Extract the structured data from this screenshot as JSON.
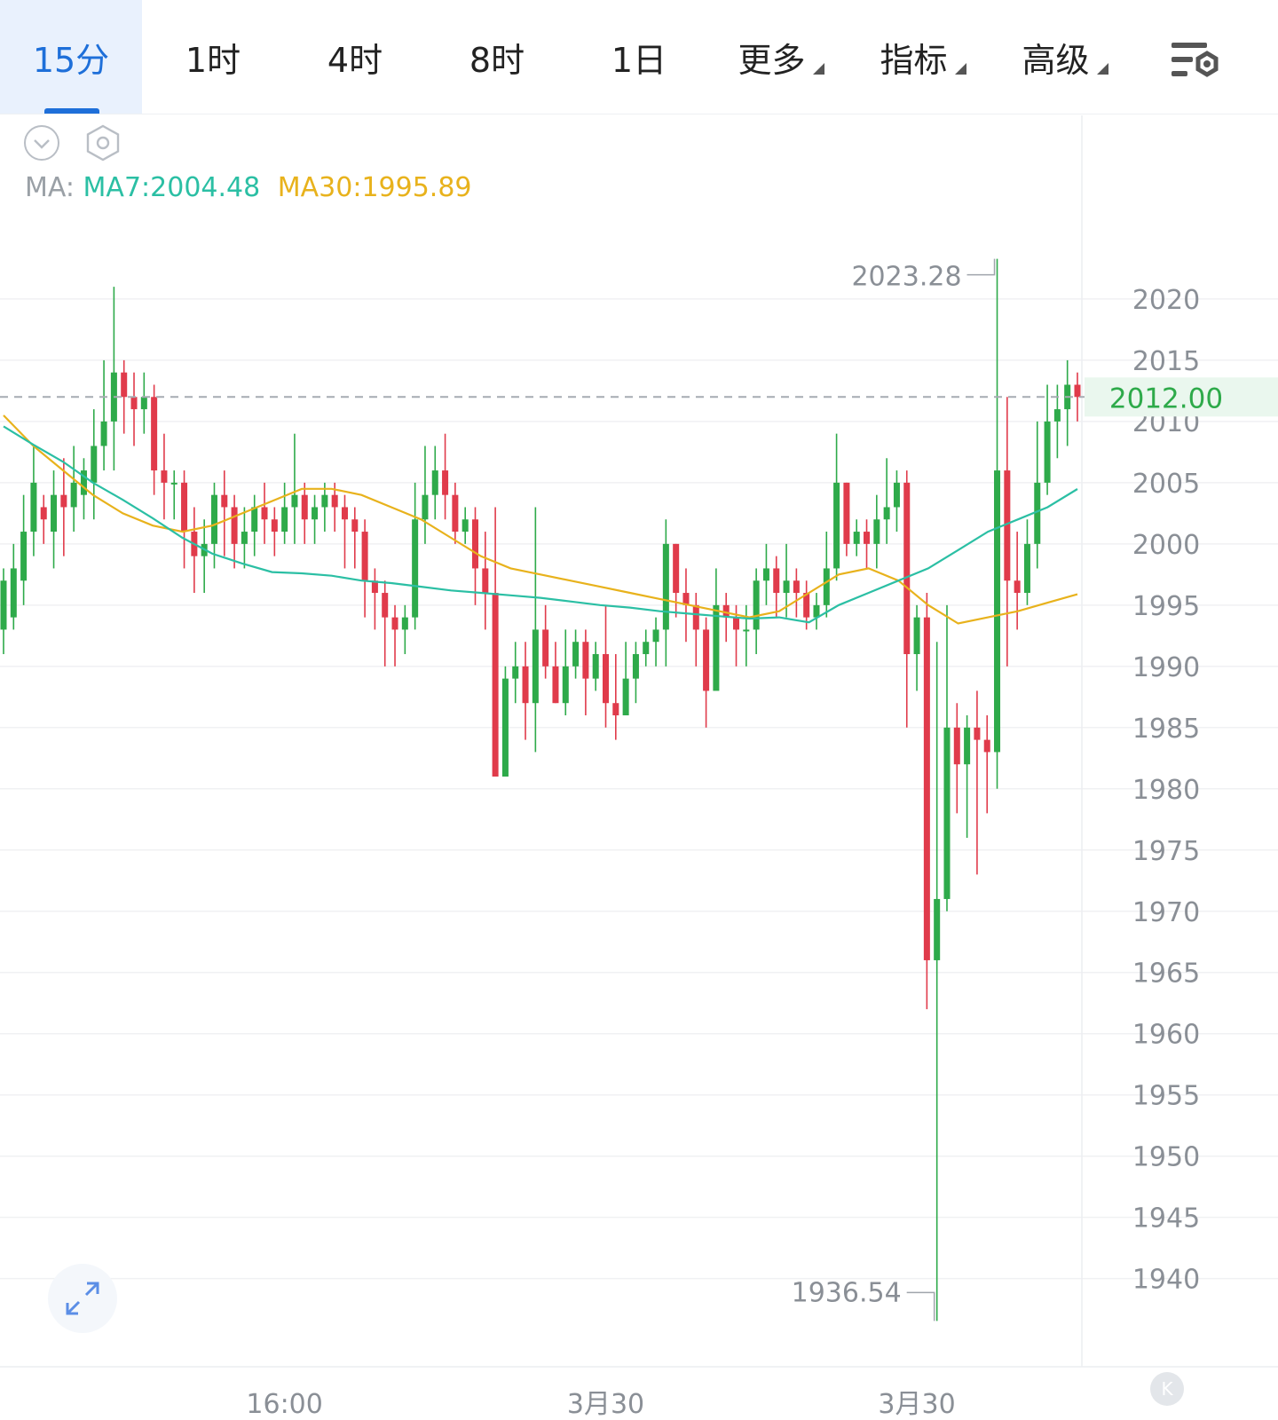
{
  "tabs": [
    {
      "label": "15分",
      "active": true
    },
    {
      "label": "1时"
    },
    {
      "label": "4时"
    },
    {
      "label": "8时"
    },
    {
      "label": "1日"
    },
    {
      "label": "更多",
      "dropdown": true
    },
    {
      "label": "指标",
      "dropdown": true
    },
    {
      "label": "高级",
      "dropdown": true
    }
  ],
  "toolbar": {
    "settings_icon": "chart-settings-icon",
    "collapse_icon": "chevron-down-circle-icon",
    "hex_icon": "hexagon-settings-icon"
  },
  "ma": {
    "prefix": "MA:",
    "ma7": "MA7:2004.48",
    "ma30": "MA30:1995.89"
  },
  "colors": {
    "up": "#2eaa4a",
    "down": "#e03b4b",
    "ma7": "#2bbfa4",
    "ma30": "#e8b21c",
    "accent": "#1e6fd9"
  },
  "chart_data": {
    "type": "candlestick",
    "y_axis_ticks": [
      2020,
      2015,
      2010,
      2005,
      2000,
      1995,
      1990,
      1985,
      1980,
      1975,
      1970,
      1965,
      1960,
      1955,
      1950,
      1945,
      1940
    ],
    "ylim": [
      1932.8,
      2026.3
    ],
    "x_tick_labels": [
      "16:00",
      "3月30",
      "3月30"
    ],
    "current_price": "2012.00",
    "high_label": "2023.28",
    "low_label": "1936.54",
    "series": [
      {
        "name": "MA7",
        "values": [
          2009.6,
          2008.1,
          2006.7,
          2005.0,
          2003.6,
          2002.1,
          2000.5,
          1999.2,
          1998.4,
          1997.7,
          1997.6,
          1997.4,
          1997.0,
          1996.8,
          1996.5,
          1996.2,
          1996.0,
          1995.8,
          1995.6,
          1995.3,
          1995.0,
          1994.8,
          1994.5,
          1994.3,
          1994.1,
          1993.9,
          1994.0,
          1993.6,
          1995.0,
          1996.0,
          1997.0,
          1998.0,
          1999.5,
          2001.0,
          2002.0,
          2003.0,
          2004.48
        ]
      },
      {
        "name": "MA30",
        "values": [
          2010.5,
          2008.0,
          2006.0,
          2004.0,
          2002.5,
          2001.5,
          2001.0,
          2001.5,
          2002.5,
          2003.5,
          2004.5,
          2004.5,
          2004.0,
          2003.0,
          2002.0,
          2000.5,
          1999.0,
          1998.0,
          1997.5,
          1997.0,
          1996.5,
          1996.0,
          1995.5,
          1995.0,
          1994.5,
          1994.0,
          1994.5,
          1996.0,
          1997.5,
          1998.0,
          1997.0,
          1995.0,
          1993.5,
          1994.0,
          1994.5,
          1995.2,
          1995.89
        ]
      },
      {
        "name": "candles",
        "values": [
          [
            1993,
            1997,
            1991,
            1998
          ],
          [
            1994,
            1998,
            1993,
            2000
          ],
          [
            1997,
            2001,
            1995,
            2004
          ],
          [
            2001,
            2005,
            1999,
            2008
          ],
          [
            2003,
            2002,
            2000,
            2004
          ],
          [
            2001,
            2004,
            1998,
            2006
          ],
          [
            2004,
            2003,
            1999,
            2007
          ],
          [
            2003,
            2005,
            2001,
            2008
          ],
          [
            2004,
            2006,
            2002,
            2007
          ],
          [
            2005,
            2008,
            2002,
            2011
          ],
          [
            2008,
            2010,
            2006,
            2015
          ],
          [
            2010,
            2014,
            2006,
            2021
          ],
          [
            2014,
            2012,
            2009,
            2015
          ],
          [
            2012,
            2011,
            2008,
            2014
          ],
          [
            2011,
            2012,
            2009,
            2014
          ],
          [
            2012,
            2006,
            2004,
            2013
          ],
          [
            2006,
            2005,
            2002,
            2009
          ],
          [
            2005,
            2005,
            2002,
            2006
          ],
          [
            2005,
            2001,
            1998,
            2006
          ],
          [
            2001,
            1999,
            1996,
            2003
          ],
          [
            1999,
            2000,
            1996,
            2002
          ],
          [
            2000,
            2004,
            1998,
            2005
          ],
          [
            2004,
            2003,
            1999,
            2006
          ],
          [
            2003,
            2000,
            1998,
            2004
          ],
          [
            2000,
            2001,
            1998,
            2003
          ],
          [
            2001,
            2003,
            1999,
            2004
          ],
          [
            2003,
            2002,
            2000,
            2005
          ],
          [
            2002,
            2001,
            1999,
            2003
          ],
          [
            2001,
            2003,
            2000,
            2005
          ],
          [
            2003,
            2004,
            2000,
            2009
          ],
          [
            2004,
            2002,
            2000,
            2005
          ],
          [
            2002,
            2003,
            2000,
            2004
          ],
          [
            2003,
            2004,
            2001,
            2005
          ],
          [
            2004,
            2003,
            2001,
            2005
          ],
          [
            2003,
            2002,
            1998,
            2004
          ],
          [
            2002,
            2001,
            1998,
            2003
          ],
          [
            2001,
            1997,
            1994,
            2002
          ],
          [
            1997,
            1996,
            1993,
            1998
          ],
          [
            1996,
            1994,
            1990,
            1997
          ],
          [
            1994,
            1993,
            1990,
            1995
          ],
          [
            1993,
            1994,
            1991,
            1995
          ],
          [
            1994,
            2002,
            1993,
            2005
          ],
          [
            2002,
            2004,
            2000,
            2008
          ],
          [
            2004,
            2006,
            2002,
            2008
          ],
          [
            2006,
            2004,
            2002,
            2009
          ],
          [
            2004,
            2001,
            2000,
            2005
          ],
          [
            2001,
            2002,
            2000,
            2003
          ],
          [
            2002,
            1998,
            1995,
            2003
          ],
          [
            1998,
            1996,
            1993,
            2001
          ],
          [
            1996,
            1981,
            1981,
            2003
          ],
          [
            1981,
            1989,
            1981,
            1990
          ],
          [
            1989,
            1990,
            1987,
            1992
          ],
          [
            1990,
            1987,
            1984,
            1992
          ],
          [
            1987,
            1993,
            1983,
            2003
          ],
          [
            1993,
            1990,
            1989,
            1995
          ],
          [
            1990,
            1987,
            1987,
            1992
          ],
          [
            1987,
            1990,
            1986,
            1993
          ],
          [
            1990,
            1992,
            1989,
            1993
          ],
          [
            1992,
            1989,
            1986,
            1993
          ],
          [
            1989,
            1991,
            1988,
            1992
          ],
          [
            1991,
            1987,
            1985,
            1995
          ],
          [
            1987,
            1986,
            1984,
            1991
          ],
          [
            1986,
            1989,
            1986,
            1992
          ],
          [
            1989,
            1991,
            1987,
            1992
          ],
          [
            1991,
            1992,
            1990,
            1993
          ],
          [
            1992,
            1993,
            1990,
            1994
          ],
          [
            1993,
            2000,
            1990,
            2002
          ],
          [
            2000,
            1996,
            1994,
            2000
          ],
          [
            1996,
            1995,
            1992,
            1998
          ],
          [
            1995,
            1993,
            1990,
            1996
          ],
          [
            1993,
            1988,
            1985,
            1994
          ],
          [
            1988,
            1995,
            1990,
            1998
          ],
          [
            1995,
            1994,
            1992,
            1996
          ],
          [
            1994,
            1993,
            1990,
            1995
          ],
          [
            1993,
            1993,
            1990,
            1995
          ],
          [
            1993,
            1997,
            1991,
            1998
          ],
          [
            1997,
            1998,
            1995,
            2000
          ],
          [
            1998,
            1996,
            1994,
            1999
          ],
          [
            1996,
            1997,
            1994,
            2000
          ],
          [
            1997,
            1996,
            1994,
            1998
          ],
          [
            1996,
            1994,
            1993,
            1997
          ],
          [
            1994,
            1995,
            1993,
            1996
          ],
          [
            1995,
            1998,
            1994,
            2001
          ],
          [
            1998,
            2005,
            1997,
            2009
          ],
          [
            2005,
            2000,
            1999,
            2005
          ],
          [
            2000,
            2001,
            1999,
            2002
          ],
          [
            2001,
            2000,
            1998,
            2002
          ],
          [
            2000,
            2002,
            1998,
            2004
          ],
          [
            2002,
            2003,
            2000,
            2007
          ],
          [
            2003,
            2005,
            2001,
            2006
          ],
          [
            2005,
            1991,
            1985,
            2006
          ],
          [
            1991,
            1994,
            1988,
            1995
          ],
          [
            1994,
            1966,
            1962,
            1996
          ],
          [
            1966,
            1971,
            1936.54,
            1992
          ],
          [
            1971,
            1985,
            1970,
            1995
          ],
          [
            1985,
            1982,
            1978,
            1987
          ],
          [
            1982,
            1985,
            1976,
            1986
          ],
          [
            1985,
            1984,
            1973,
            1988
          ],
          [
            1984,
            1983,
            1978,
            1986
          ],
          [
            1983,
            2006,
            1980,
            2023.28
          ],
          [
            2006,
            1997,
            1990,
            2012
          ],
          [
            1997,
            1996,
            1993,
            2001
          ],
          [
            1996,
            2000,
            1995,
            2002
          ],
          [
            2000,
            2005,
            1998,
            2010
          ],
          [
            2005,
            2010,
            2004,
            2013
          ],
          [
            2010,
            2011,
            2007,
            2013
          ],
          [
            2011,
            2013,
            2008,
            2015
          ],
          [
            2013,
            2012,
            2010,
            2014
          ]
        ]
      }
    ]
  },
  "controls": {
    "expand_icon": "expand-arrows-icon",
    "corner_badge": "K"
  }
}
